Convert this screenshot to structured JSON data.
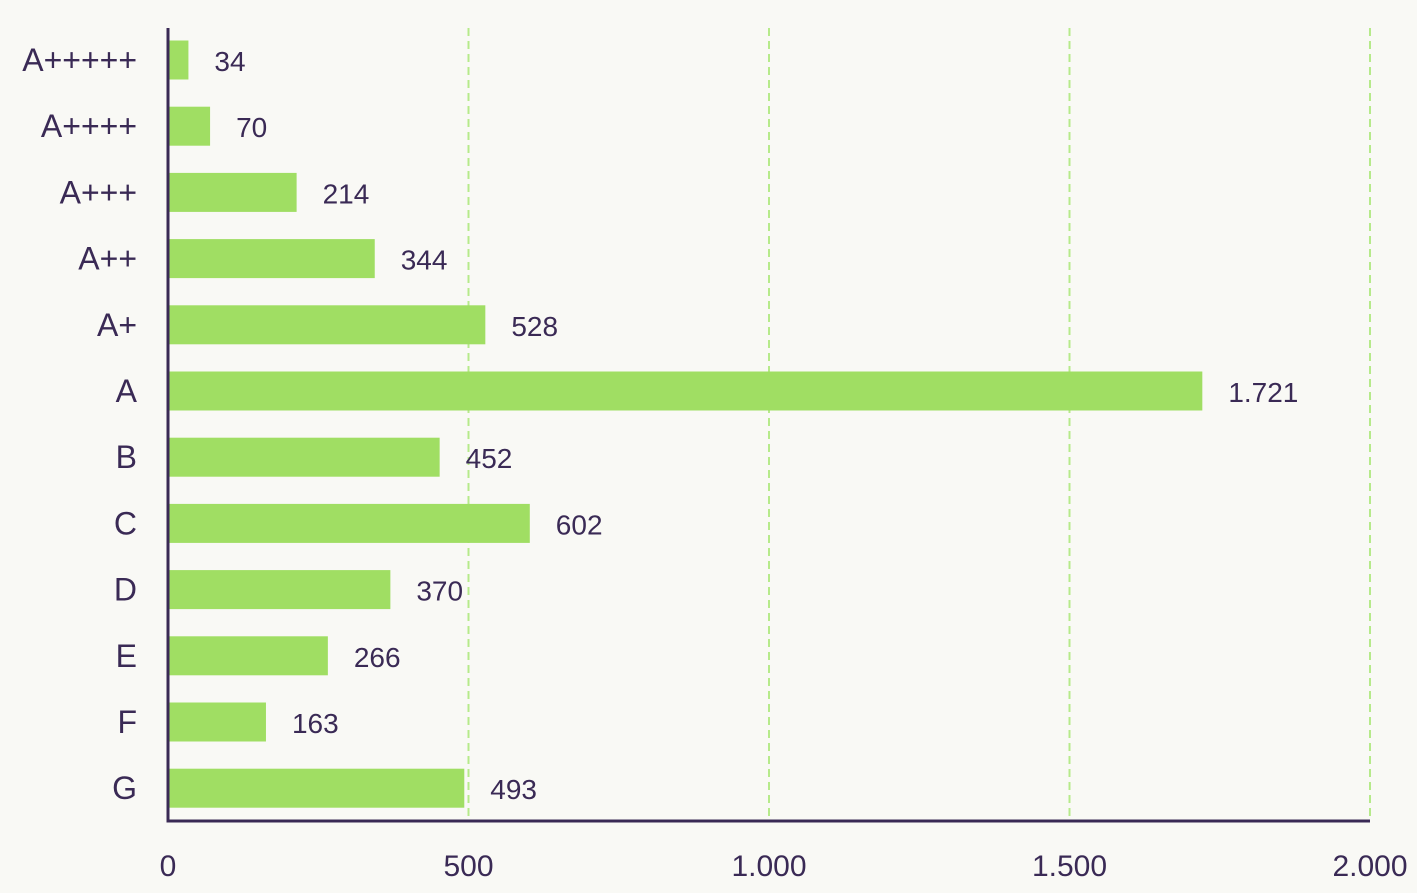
{
  "chart_data": {
    "type": "bar",
    "orientation": "horizontal",
    "categories": [
      "A+++++",
      "A++++",
      "A+++",
      "A++",
      "A+",
      "A",
      "B",
      "C",
      "D",
      "E",
      "F",
      "G"
    ],
    "values": [
      34,
      70,
      214,
      344,
      528,
      1721,
      452,
      602,
      370,
      266,
      163,
      493
    ],
    "value_labels": [
      "34",
      "70",
      "214",
      "344",
      "528",
      "1.721",
      "452",
      "602",
      "370",
      "266",
      "163",
      "493"
    ],
    "xlim": [
      0,
      2000
    ],
    "x_ticks": [
      0,
      500,
      1000,
      1500,
      2000
    ],
    "x_tick_labels": [
      "0",
      "500",
      "1.000",
      "1.500",
      "2.000"
    ],
    "grid": true,
    "colors": {
      "bar": "#a0de63",
      "grid": "#b6ea8a",
      "axis": "#3a2a55",
      "text": "#3a2a55",
      "background": "#f9f9f5"
    }
  }
}
